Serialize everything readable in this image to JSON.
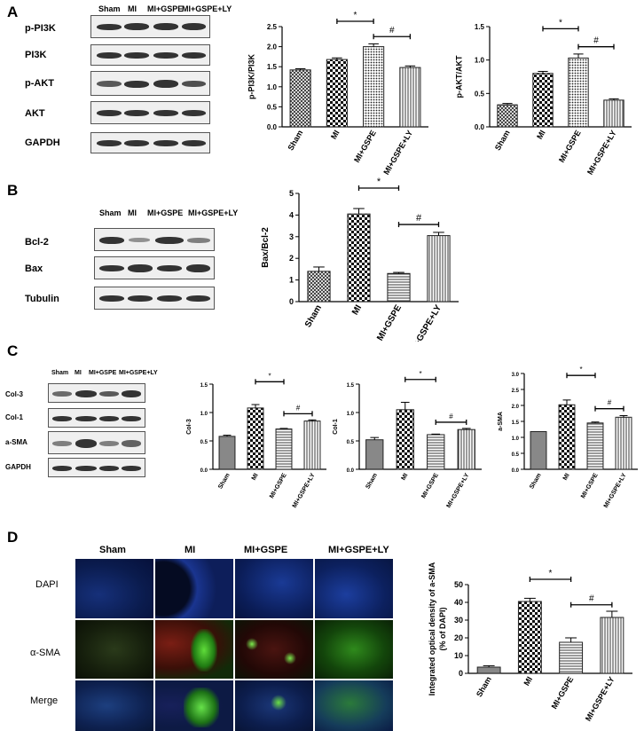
{
  "panels": {
    "A": "A",
    "B": "B",
    "C": "C",
    "D": "D"
  },
  "colors": {
    "bar_fill": "#ffffff",
    "bar_stroke": "#222222",
    "blot_bg": "#efefef",
    "band": "#333333"
  },
  "panelA": {
    "lanes": [
      "Sham",
      "MI",
      "MI+GSPE",
      "MI+GSPE+LY"
    ],
    "blots": [
      "p-PI3K",
      "PI3K",
      "p-AKT",
      "AKT",
      "GAPDH"
    ]
  },
  "panelB": {
    "lanes": [
      "Sham",
      "MI",
      "MI+GSPE",
      "MI+GSPE+LY"
    ],
    "blots": [
      "Bcl-2",
      "Bax",
      "Tubulin"
    ]
  },
  "panelC": {
    "lanes": [
      "Sham",
      "MI",
      "MI+GSPE",
      "MI+GSPE+LY"
    ],
    "blots": [
      "Col-3",
      "Col-1",
      "a-SMA",
      "GAPDH"
    ]
  },
  "panelD": {
    "columns": [
      "Sham",
      "MI",
      "MI+GSPE",
      "MI+GSPE+LY"
    ],
    "rows": [
      "DAPI",
      "α-SMA",
      "Merge"
    ]
  },
  "chart_data": [
    {
      "id": "A1",
      "type": "bar",
      "categories": [
        "Sham",
        "MI",
        "MI+GSPE",
        "MI+GSPE+LY"
      ],
      "values": [
        1.42,
        1.68,
        2.0,
        1.48
      ],
      "errors": [
        0.03,
        0.04,
        0.07,
        0.04
      ],
      "ylabel": "p-PI3K/PI3K",
      "ylim": [
        0,
        2.5
      ],
      "yticks": [
        "0.0",
        "0.5",
        "1.0",
        "1.5",
        "2.0",
        "2.5"
      ],
      "patterns": [
        "crosshatch",
        "checker",
        "dots",
        "vlines"
      ],
      "sig": [
        {
          "from": 1,
          "to": 2,
          "label": "*"
        },
        {
          "from": 2,
          "to": 3,
          "label": "#"
        }
      ]
    },
    {
      "id": "A2",
      "type": "bar",
      "categories": [
        "Sham",
        "MI",
        "MI+GSPE",
        "MI+GSPE+LY"
      ],
      "values": [
        0.33,
        0.8,
        1.03,
        0.4
      ],
      "errors": [
        0.02,
        0.03,
        0.06,
        0.02
      ],
      "ylabel": "p-AKT/AKT",
      "ylim": [
        0,
        1.5
      ],
      "yticks": [
        "0.0",
        "0.5",
        "1.0",
        "1.5"
      ],
      "patterns": [
        "crosshatch",
        "checker",
        "dots",
        "vlines"
      ],
      "sig": [
        {
          "from": 1,
          "to": 2,
          "label": "*"
        },
        {
          "from": 2,
          "to": 3,
          "label": "#"
        }
      ]
    },
    {
      "id": "B1",
      "type": "bar",
      "categories": [
        "Sham",
        "MI",
        "MI+GSPE",
        "MI+GSPE+LY"
      ],
      "values": [
        1.4,
        4.05,
        1.3,
        3.05
      ],
      "errors": [
        0.2,
        0.25,
        0.05,
        0.15
      ],
      "ylabel": "Bax/Bcl-2",
      "ylim": [
        0,
        5
      ],
      "yticks": [
        "0",
        "1",
        "2",
        "3",
        "4",
        "5"
      ],
      "patterns": [
        "crosshatch",
        "checker",
        "hlines",
        "vlines"
      ],
      "sig": [
        {
          "from": 1,
          "to": 2,
          "label": "*"
        },
        {
          "from": 2,
          "to": 3,
          "label": "#"
        }
      ]
    },
    {
      "id": "C1",
      "type": "bar",
      "categories": [
        "Sham",
        "MI",
        "MI+GSPE",
        "MI+GSPE+LY"
      ],
      "values": [
        0.58,
        1.08,
        0.71,
        0.85
      ],
      "errors": [
        0.02,
        0.06,
        0.01,
        0.02
      ],
      "ylabel": "Col-3",
      "ylim": [
        0,
        1.5
      ],
      "yticks": [
        "0.0",
        "0.5",
        "1.0",
        "1.5"
      ],
      "patterns": [
        "solid",
        "checker",
        "hlines",
        "vlines"
      ],
      "sig": [
        {
          "from": 1,
          "to": 2,
          "label": "*"
        },
        {
          "from": 2,
          "to": 3,
          "label": "#"
        }
      ]
    },
    {
      "id": "C2",
      "type": "bar",
      "categories": [
        "Sham",
        "MI",
        "MI+GSPE",
        "MI+GSPE+LY"
      ],
      "values": [
        0.52,
        1.05,
        0.61,
        0.7
      ],
      "errors": [
        0.04,
        0.13,
        0.01,
        0.02
      ],
      "ylabel": "Col-1",
      "ylim": [
        0,
        1.5
      ],
      "yticks": [
        "0.0",
        "0.5",
        "1.0",
        "1.5"
      ],
      "patterns": [
        "solid",
        "checker",
        "hlines",
        "vlines"
      ],
      "sig": [
        {
          "from": 1,
          "to": 2,
          "label": "*"
        },
        {
          "from": 2,
          "to": 3,
          "label": "#"
        }
      ]
    },
    {
      "id": "C3",
      "type": "bar",
      "categories": [
        "Sham",
        "MI",
        "MI+GSPE",
        "MI+GSPE+LY"
      ],
      "values": [
        1.18,
        2.02,
        1.45,
        1.63
      ],
      "errors": [
        0.0,
        0.15,
        0.03,
        0.05
      ],
      "ylabel": "a-SMA",
      "ylim": [
        0,
        3.0
      ],
      "yticks": [
        "0.0",
        "0.5",
        "1.0",
        "1.5",
        "2.0",
        "2.5",
        "3.0"
      ],
      "patterns": [
        "solid",
        "checker",
        "hlines",
        "vlines"
      ],
      "sig": [
        {
          "from": 1,
          "to": 2,
          "label": "*"
        },
        {
          "from": 2,
          "to": 3,
          "label": "#"
        }
      ]
    },
    {
      "id": "D1",
      "type": "bar",
      "categories": [
        "Sham",
        "MI",
        "MI+GSPE",
        "MI+GSPE+LY"
      ],
      "values": [
        3.5,
        40.5,
        17.5,
        31.5
      ],
      "errors": [
        0.8,
        1.8,
        2.5,
        3.5
      ],
      "ylabel": "Integrated optical density of a-SMA (% of DAPI)",
      "ylabel_lines": [
        "Integrated optical density of a-SMA",
        "(% of DAPI)"
      ],
      "ylim": [
        0,
        50
      ],
      "yticks": [
        "0",
        "10",
        "20",
        "30",
        "40",
        "50"
      ],
      "patterns": [
        "solid",
        "checker",
        "hlines",
        "vlines"
      ],
      "sig": [
        {
          "from": 1,
          "to": 2,
          "label": "*"
        },
        {
          "from": 2,
          "to": 3,
          "label": "#"
        }
      ]
    }
  ]
}
